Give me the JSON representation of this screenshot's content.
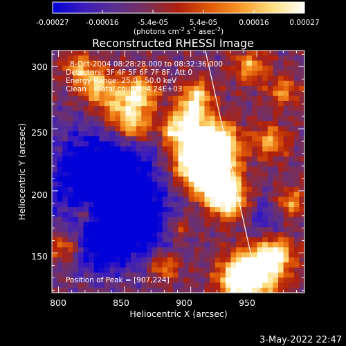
{
  "colors": {
    "background": "#000000",
    "text": "#ffffff",
    "limb": "#ffffff",
    "colormap": [
      "#0000d8",
      "#3c1cbc",
      "#5a2f8e",
      "#7a2f58",
      "#b0200c",
      "#e05a06",
      "#f89a2a",
      "#fde082",
      "#ffffff"
    ]
  },
  "colorbar": {
    "ticks": [
      "-0.00027",
      "-0.00016",
      "-5.4e-05",
      "5.4e-05",
      "0.00016",
      "0.00027"
    ],
    "units_prefix": "(photons cm",
    "units_sup1": "-2",
    "units_mid1": " s",
    "units_sup2": "-1",
    "units_mid2": " asec",
    "units_sup3": "-2",
    "units_suffix": ")"
  },
  "chart_data": {
    "type": "heatmap",
    "title": "Reconstructed RHESSI Image",
    "xlabel": "Heliocentric X (arcsec)",
    "ylabel": "Heliocentric Y (arcsec)",
    "xlim": [
      795,
      986
    ],
    "ylim": [
      118,
      313
    ],
    "xticks": [
      "800",
      "850",
      "900",
      "950"
    ],
    "yticks": [
      "150",
      "200",
      "250",
      "300"
    ],
    "color_range": [
      -0.00027,
      0.00027
    ],
    "info_lines": [
      "8-Oct-2004 08:28:28.000 to 08:32:36.000",
      "Detectors: 3F 4F 5F 6F 7F 8F, Att 0",
      "Energy Range: 25.0 - 50.0 keV",
      "Clean     Total counts: 4.24E+03"
    ],
    "peak_label": "Position of Peak = [907,224]",
    "peak": [
      907,
      224
    ],
    "limb_line": [
      [
        910,
        318
      ],
      [
        952,
        118
      ]
    ],
    "grid": false
  },
  "timestamp": "3-May-2022 22:47"
}
